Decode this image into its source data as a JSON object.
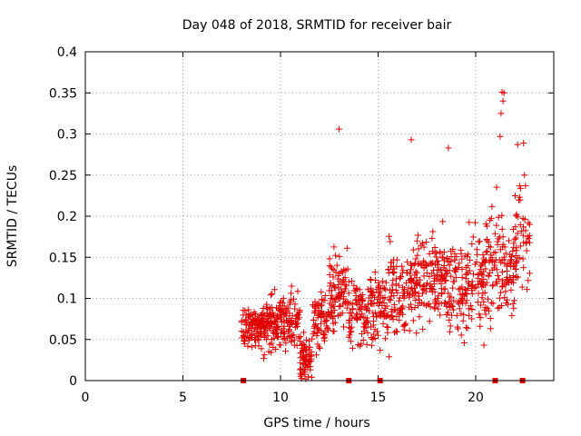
{
  "chart_data": {
    "type": "scatter",
    "title": "Day 048 of 2018, SRMTID for receiver bair",
    "xlabel": "GPS time / hours",
    "ylabel": "SRMTID / TECUs",
    "xlim": [
      0,
      24
    ],
    "ylim": [
      0,
      0.4
    ],
    "x_ticks": [
      0,
      5,
      10,
      15,
      20
    ],
    "x_tick_labels": [
      "0",
      "5",
      "10",
      "15",
      "20"
    ],
    "y_ticks": [
      0,
      0.05,
      0.1,
      0.15,
      0.2,
      0.25,
      0.3,
      0.35,
      0.4
    ],
    "y_tick_labels": [
      "0",
      "0.05",
      "0.1",
      "0.15",
      "0.2",
      "0.25",
      "0.3",
      "0.35",
      "0.4"
    ],
    "grid": true,
    "series_color": "#e00000",
    "marker": "+",
    "data_density": [
      {
        "start": 8.0,
        "end": 9.0,
        "mean": 0.065,
        "spread": 0.025,
        "count": 90
      },
      {
        "start": 9.0,
        "end": 10.0,
        "mean": 0.07,
        "spread": 0.028,
        "count": 110
      },
      {
        "start": 10.0,
        "end": 11.0,
        "mean": 0.07,
        "spread": 0.03,
        "count": 90
      },
      {
        "start": 11.0,
        "end": 11.6,
        "mean": 0.03,
        "spread": 0.025,
        "count": 70
      },
      {
        "start": 11.6,
        "end": 12.5,
        "mean": 0.07,
        "spread": 0.03,
        "count": 70
      },
      {
        "start": 12.5,
        "end": 13.5,
        "mean": 0.11,
        "spread": 0.04,
        "count": 90
      },
      {
        "start": 13.5,
        "end": 14.5,
        "mean": 0.08,
        "spread": 0.04,
        "count": 80
      },
      {
        "start": 14.5,
        "end": 15.5,
        "mean": 0.09,
        "spread": 0.045,
        "count": 80
      },
      {
        "start": 15.5,
        "end": 16.5,
        "mean": 0.11,
        "spread": 0.05,
        "count": 80
      },
      {
        "start": 16.5,
        "end": 17.5,
        "mean": 0.12,
        "spread": 0.05,
        "count": 90
      },
      {
        "start": 17.5,
        "end": 18.5,
        "mean": 0.125,
        "spread": 0.05,
        "count": 90
      },
      {
        "start": 18.5,
        "end": 19.5,
        "mean": 0.11,
        "spread": 0.05,
        "count": 80
      },
      {
        "start": 19.5,
        "end": 20.5,
        "mean": 0.12,
        "spread": 0.05,
        "count": 80
      },
      {
        "start": 20.5,
        "end": 21.5,
        "mean": 0.15,
        "spread": 0.07,
        "count": 80
      },
      {
        "start": 21.5,
        "end": 22.0,
        "mean": 0.13,
        "spread": 0.05,
        "count": 40
      },
      {
        "start": 22.0,
        "end": 22.8,
        "mean": 0.17,
        "spread": 0.06,
        "count": 50
      }
    ],
    "highlight_points": [
      {
        "x": 13.0,
        "y": 0.306
      },
      {
        "x": 16.7,
        "y": 0.293
      },
      {
        "x": 18.6,
        "y": 0.283
      },
      {
        "x": 21.35,
        "y": 0.351
      },
      {
        "x": 21.45,
        "y": 0.35
      },
      {
        "x": 21.4,
        "y": 0.34
      },
      {
        "x": 21.3,
        "y": 0.325
      },
      {
        "x": 21.25,
        "y": 0.297
      },
      {
        "x": 22.15,
        "y": 0.287
      },
      {
        "x": 22.45,
        "y": 0.289
      },
      {
        "x": 22.5,
        "y": 0.25
      },
      {
        "x": 22.55,
        "y": 0.237
      },
      {
        "x": 11.3,
        "y": 0.002
      },
      {
        "x": 11.6,
        "y": 0.004
      }
    ],
    "marker_squares_x": [
      8.1,
      13.5,
      15.1,
      21.0,
      22.4
    ]
  }
}
